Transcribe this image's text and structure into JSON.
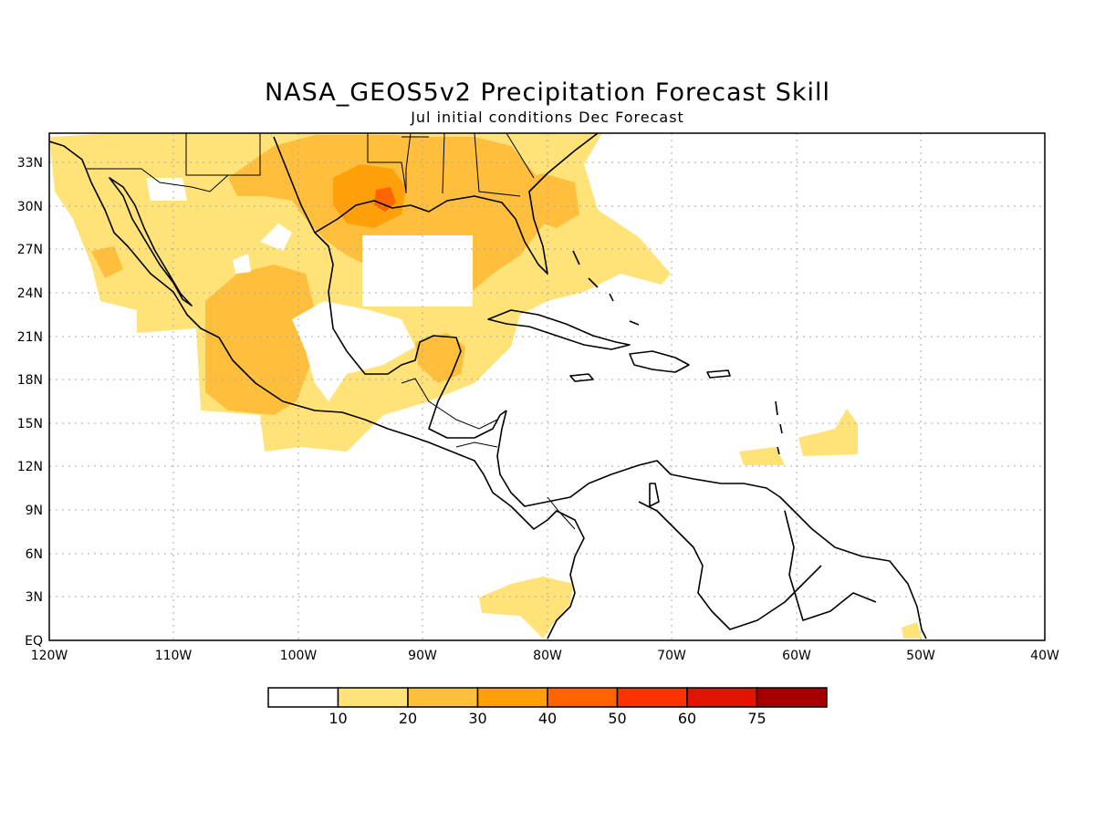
{
  "title": "NASA_GEOS5v2 Precipitation Forecast Skill",
  "subtitle": "Jul initial conditions  Dec Forecast",
  "map": {
    "lon_range": [
      -120,
      -40
    ],
    "lat_range": [
      0,
      35
    ],
    "lon_ticks": [
      "120W",
      "110W",
      "100W",
      "90W",
      "80W",
      "70W",
      "60W",
      "50W",
      "40W"
    ],
    "lat_ticks": [
      "EQ",
      "3N",
      "6N",
      "9N",
      "12N",
      "15N",
      "18N",
      "21N",
      "24N",
      "27N",
      "30N",
      "33N"
    ],
    "gridlines": "dotted"
  },
  "colorbar": {
    "labels": [
      "10",
      "20",
      "30",
      "40",
      "50",
      "60",
      "75"
    ],
    "colors": [
      "#ffffff",
      "#ffe278",
      "#ffbe3c",
      "#ffa00a",
      "#ff6400",
      "#ff3200",
      "#e11400",
      "#a50000"
    ]
  }
}
